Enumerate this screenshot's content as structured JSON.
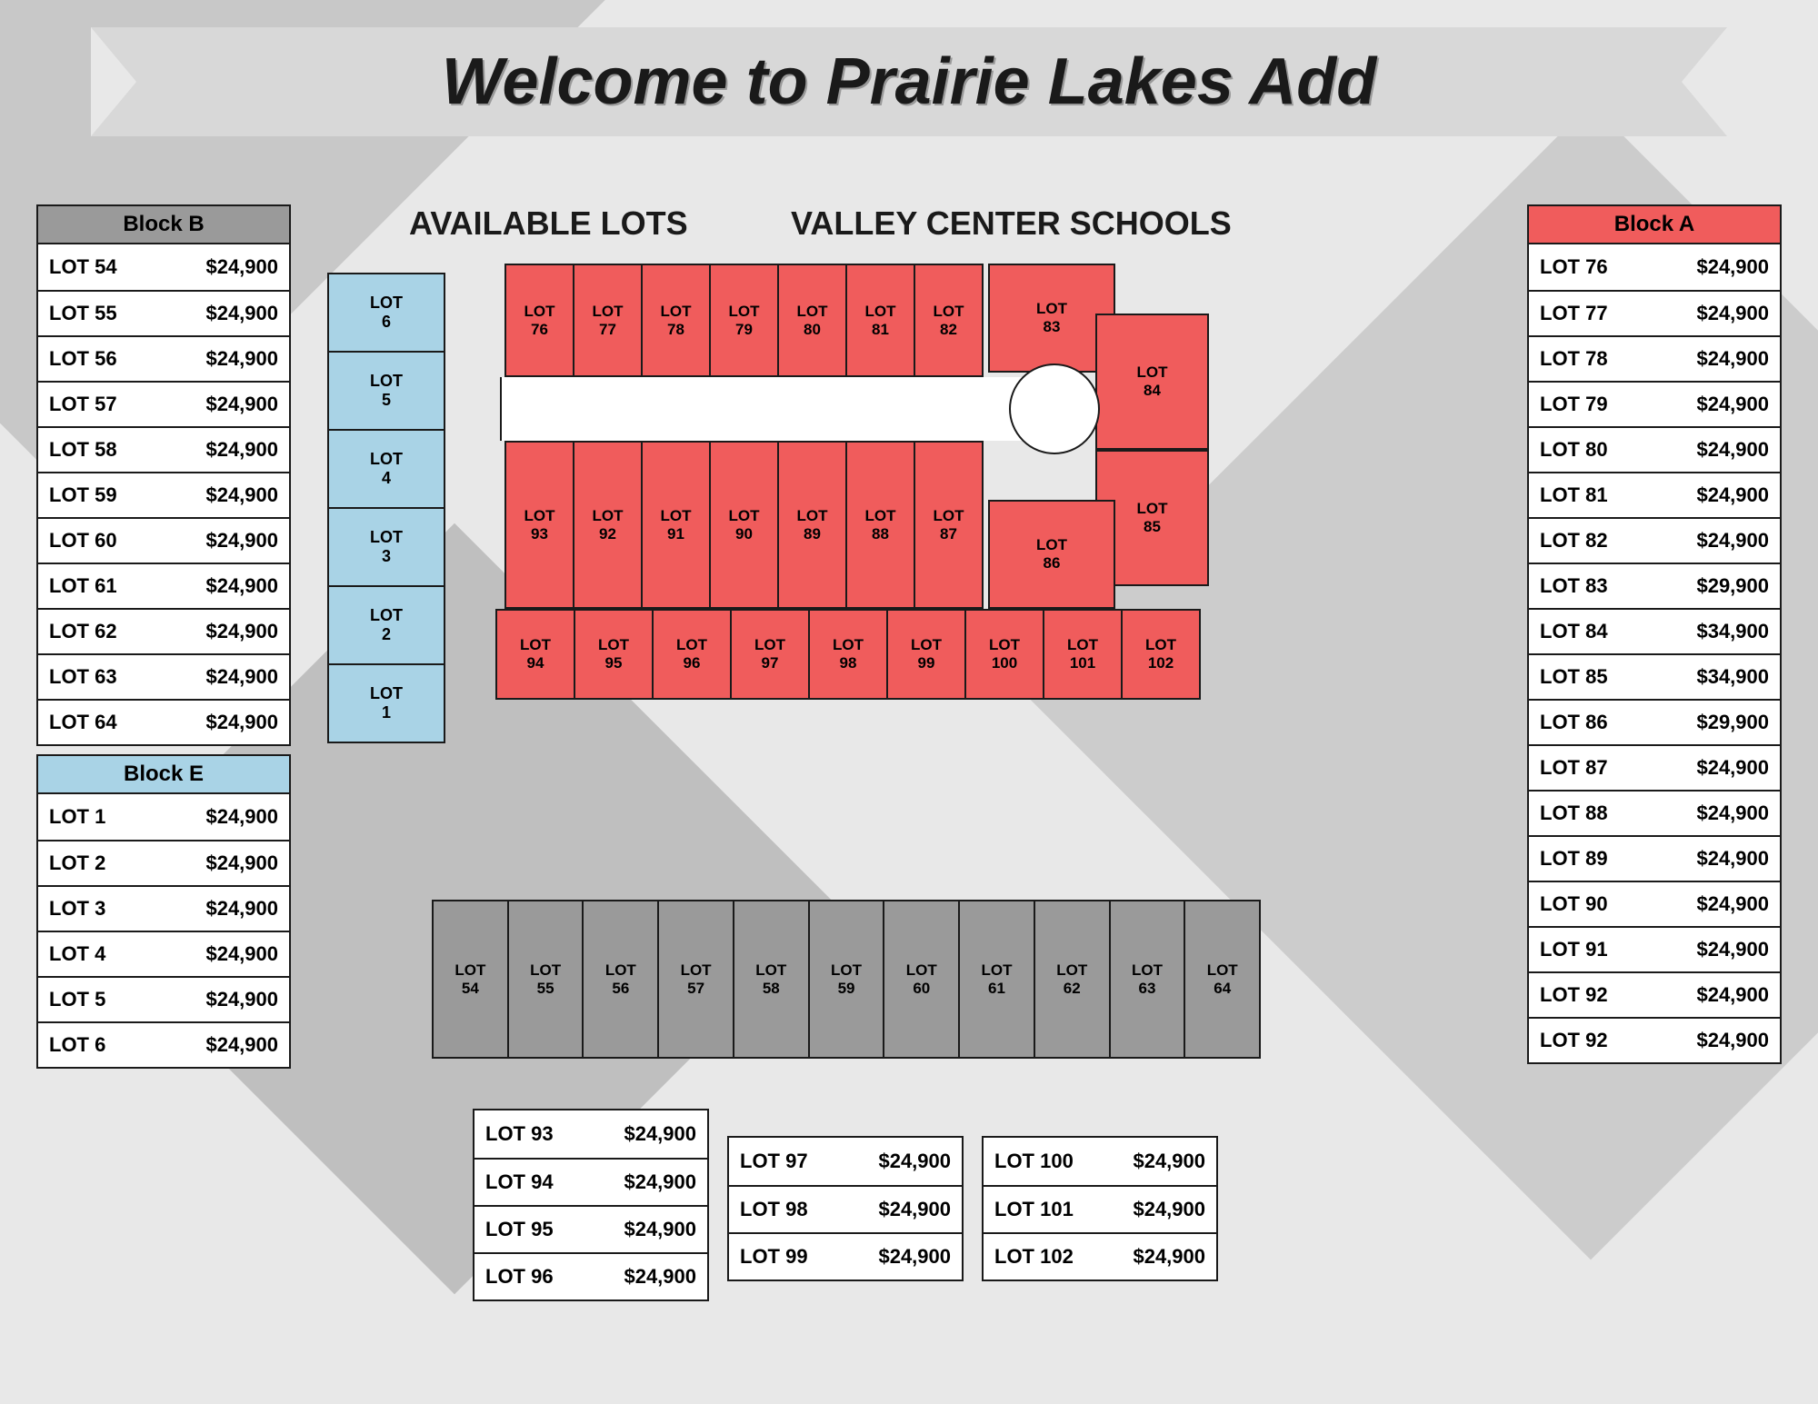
{
  "title": "Welcome to Prairie Lakes Add",
  "subheaders": {
    "left": "AVAILABLE LOTS",
    "right": "VALLEY CENTER SCHOOLS"
  },
  "colors": {
    "block_a": "#f05c5c",
    "block_b": "#9a9a9a",
    "block_e": "#a9d3e6",
    "border": "#1a1a1a",
    "row_bg": "#ffffff",
    "page_bg": "#e8e8e8"
  },
  "block_b": {
    "header": "Block B",
    "rows": [
      {
        "lot": "LOT 54",
        "price": "$24,900"
      },
      {
        "lot": "LOT 55",
        "price": "$24,900"
      },
      {
        "lot": "LOT 56",
        "price": "$24,900"
      },
      {
        "lot": "LOT 57",
        "price": "$24,900"
      },
      {
        "lot": "LOT 58",
        "price": "$24,900"
      },
      {
        "lot": "LOT 59",
        "price": "$24,900"
      },
      {
        "lot": "LOT 60",
        "price": "$24,900"
      },
      {
        "lot": "LOT 61",
        "price": "$24,900"
      },
      {
        "lot": "LOT 62",
        "price": "$24,900"
      },
      {
        "lot": "LOT 63",
        "price": "$24,900"
      },
      {
        "lot": "LOT 64",
        "price": "$24,900"
      }
    ]
  },
  "block_e": {
    "header": "Block E",
    "rows": [
      {
        "lot": "LOT 1",
        "price": "$24,900"
      },
      {
        "lot": "LOT 2",
        "price": "$24,900"
      },
      {
        "lot": "LOT 3",
        "price": "$24,900"
      },
      {
        "lot": "LOT 4",
        "price": "$24,900"
      },
      {
        "lot": "LOT 5",
        "price": "$24,900"
      },
      {
        "lot": "LOT 6",
        "price": "$24,900"
      }
    ]
  },
  "block_a": {
    "header": "Block A",
    "rows": [
      {
        "lot": "LOT 76",
        "price": "$24,900"
      },
      {
        "lot": "LOT 77",
        "price": "$24,900"
      },
      {
        "lot": "LOT 78",
        "price": "$24,900"
      },
      {
        "lot": "LOT 79",
        "price": "$24,900"
      },
      {
        "lot": "LOT 80",
        "price": "$24,900"
      },
      {
        "lot": "LOT 81",
        "price": "$24,900"
      },
      {
        "lot": "LOT 82",
        "price": "$24,900"
      },
      {
        "lot": "LOT 83",
        "price": "$29,900"
      },
      {
        "lot": "LOT 84",
        "price": "$34,900"
      },
      {
        "lot": "LOT 85",
        "price": "$34,900"
      },
      {
        "lot": "LOT 86",
        "price": "$29,900"
      },
      {
        "lot": "LOT 87",
        "price": "$24,900"
      },
      {
        "lot": "LOT 88",
        "price": "$24,900"
      },
      {
        "lot": "LOT 89",
        "price": "$24,900"
      },
      {
        "lot": "LOT 90",
        "price": "$24,900"
      },
      {
        "lot": "LOT 91",
        "price": "$24,900"
      },
      {
        "lot": "LOT 92",
        "price": "$24,900"
      },
      {
        "lot": "LOT 92",
        "price": "$24,900"
      }
    ]
  },
  "bottom_tables": {
    "t1": [
      {
        "lot": "LOT 93",
        "price": "$24,900"
      },
      {
        "lot": "LOT 94",
        "price": "$24,900"
      },
      {
        "lot": "LOT 95",
        "price": "$24,900"
      },
      {
        "lot": "LOT 96",
        "price": "$24,900"
      }
    ],
    "t2": [
      {
        "lot": "LOT 97",
        "price": "$24,900"
      },
      {
        "lot": "LOT 98",
        "price": "$24,900"
      },
      {
        "lot": "LOT 99",
        "price": "$24,900"
      }
    ],
    "t3": [
      {
        "lot": "LOT 100",
        "price": "$24,900"
      },
      {
        "lot": "LOT 101",
        "price": "$24,900"
      },
      {
        "lot": "LOT 102",
        "price": "$24,900"
      }
    ]
  },
  "map_e": [
    "6",
    "5",
    "4",
    "3",
    "2",
    "1"
  ],
  "map_a_top": [
    "76",
    "77",
    "78",
    "79",
    "80",
    "81",
    "82"
  ],
  "map_a_mid": [
    "93",
    "92",
    "91",
    "90",
    "89",
    "88",
    "87"
  ],
  "map_a_bot": [
    "94",
    "95",
    "96",
    "97",
    "98",
    "99",
    "100",
    "101",
    "102"
  ],
  "map_a_corner": {
    "83": "83",
    "84": "84",
    "85": "85",
    "86": "86"
  },
  "map_b": [
    "54",
    "55",
    "56",
    "57",
    "58",
    "59",
    "60",
    "61",
    "62",
    "63",
    "64"
  ],
  "lot_label": "LOT"
}
